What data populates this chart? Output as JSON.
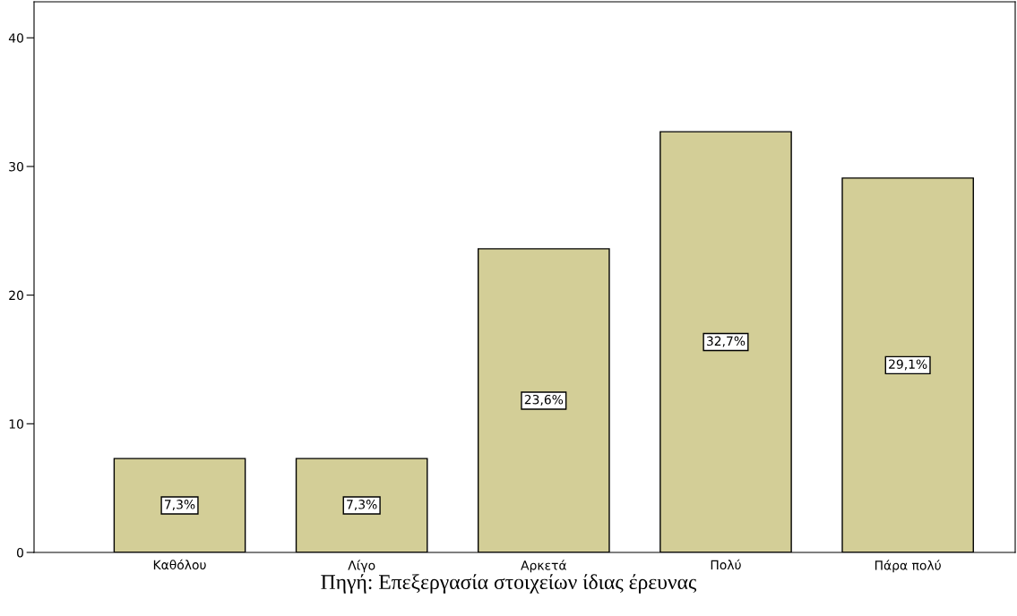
{
  "chart_data": {
    "type": "bar",
    "categories": [
      "Καθόλου",
      "Λίγο",
      "Αρκετά",
      "Πολύ",
      "Πάρα πολύ"
    ],
    "values": [
      7.3,
      7.3,
      23.6,
      32.7,
      29.1
    ],
    "value_labels": [
      "7,3%",
      "7,3%",
      "23,6%",
      "32,7%",
      "29,1%"
    ],
    "color": "#d3ce97",
    "ylim": [
      0,
      42.8
    ],
    "yticks": [
      0,
      10,
      20,
      30,
      40
    ],
    "grid": false,
    "annotations": [
      "Πηγή: Επεξεργασία στοιχείων ίδιας έρευνας"
    ]
  }
}
